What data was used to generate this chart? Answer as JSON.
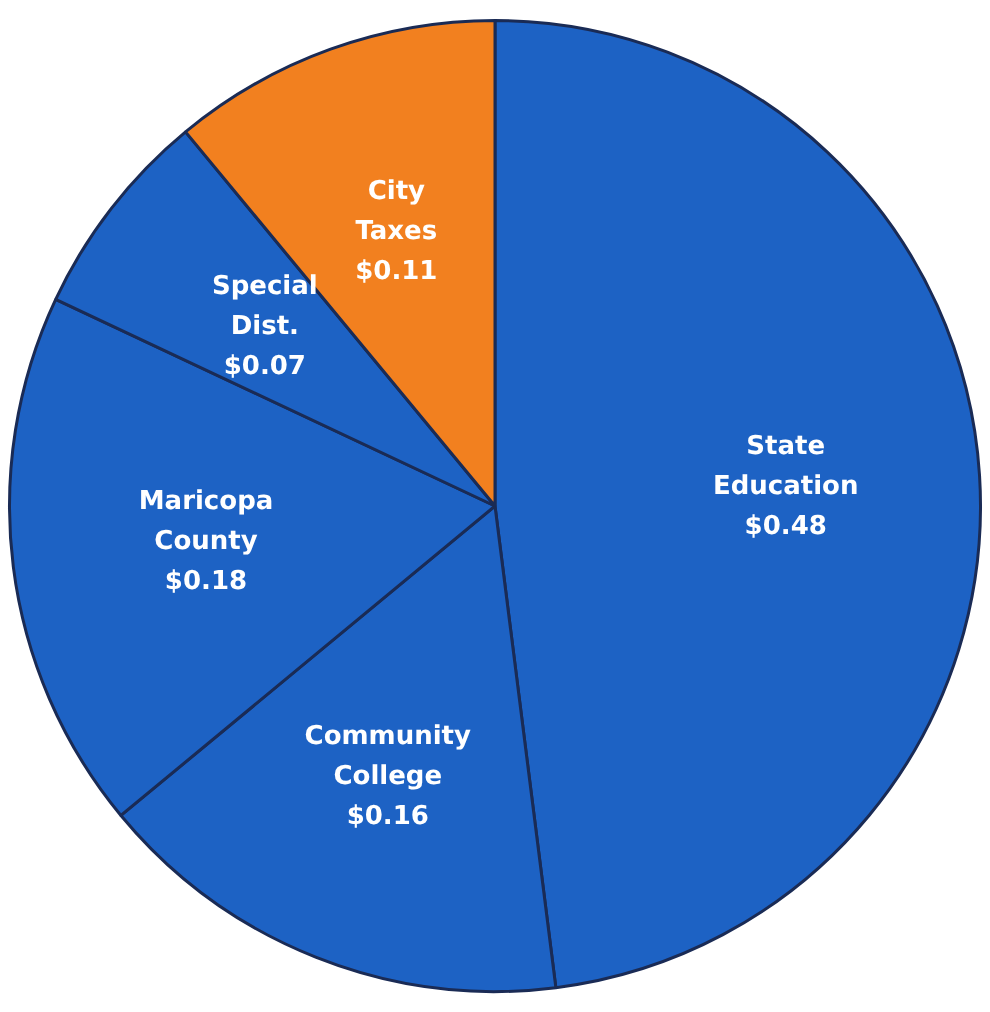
{
  "chart_data": {
    "type": "pie",
    "categories": [
      "State Education",
      "Community College",
      "Maricopa County",
      "Special Dist.",
      "City Taxes"
    ],
    "values": [
      0.48,
      0.16,
      0.18,
      0.07,
      0.11
    ],
    "colors": [
      "#1d62c4",
      "#1d62c4",
      "#1d62c4",
      "#1d62c4",
      "#f2801f"
    ],
    "value_labels": [
      "$0.48",
      "$0.16",
      "$0.18",
      "$0.07",
      "$0.11"
    ],
    "legend": false
  }
}
